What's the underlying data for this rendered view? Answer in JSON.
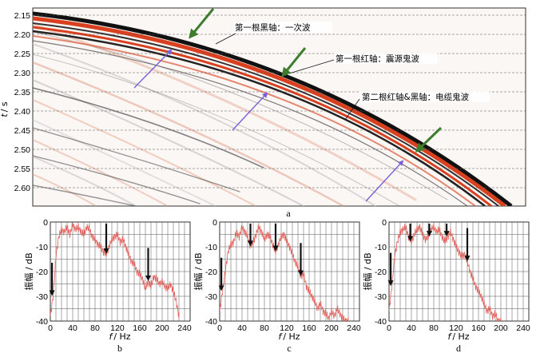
{
  "top_panel": {
    "caption": "a",
    "ylabel_italic": "t",
    "ylabel_unit": "/ s",
    "ytick_labels": [
      "2.15",
      "2.20",
      "2.25",
      "2.30",
      "2.35",
      "2.40",
      "2.45",
      "2.50",
      "2.55",
      "2.60"
    ],
    "annotations": {
      "primary": "第一根黑轴：一次波",
      "source_ghost": "第一根红轴：震源鬼波",
      "cable_ghost": "第二根红轴&黑轴：电缆鬼波"
    },
    "colors": {
      "red_event": "#d9401f",
      "black_event": "#111111",
      "green_arrow": "#3f7d2e",
      "purple_arrow": "#7b5fd6"
    }
  },
  "chart_data": [
    {
      "type": "line",
      "caption": "b",
      "xlabel_italic": "f",
      "xlabel_unit": "/ Hz",
      "ylabel": "振幅 / dB",
      "xticks": [
        "0",
        "40",
        "80",
        "120",
        "160",
        "200",
        "240"
      ],
      "yticks": [
        "0",
        "-10",
        "-20",
        "-30",
        "-40"
      ],
      "xlim": [
        0,
        250
      ],
      "ylim": [
        -40,
        0
      ],
      "grid": true,
      "notch_arrows_hz": [
        3,
        100,
        175
      ],
      "x": [
        0,
        5,
        10,
        15,
        20,
        25,
        30,
        35,
        40,
        45,
        50,
        55,
        60,
        65,
        70,
        75,
        80,
        85,
        90,
        95,
        100,
        105,
        110,
        115,
        120,
        125,
        130,
        135,
        140,
        145,
        150,
        155,
        160,
        165,
        170,
        175,
        180,
        185,
        190,
        195,
        200,
        205,
        210,
        215,
        220,
        225,
        230
      ],
      "values": [
        -38,
        -30,
        -14,
        -6,
        -3,
        -4,
        -2,
        -5,
        -1,
        -3,
        -2,
        -4,
        -5,
        -2,
        -3,
        -6,
        -7,
        -9,
        -10,
        -12,
        -13,
        -10,
        -7,
        -6,
        -5,
        -8,
        -7,
        -10,
        -13,
        -16,
        -17,
        -20,
        -21,
        -23,
        -27,
        -24,
        -26,
        -22,
        -23,
        -25,
        -24,
        -26,
        -27,
        -25,
        -28,
        -32,
        -38
      ]
    },
    {
      "type": "line",
      "caption": "c",
      "xlabel_italic": "f",
      "xlabel_unit": "/ Hz",
      "ylabel": "振幅 / dB",
      "xticks": [
        "0",
        "40",
        "80",
        "120",
        "160",
        "200",
        "240"
      ],
      "yticks": [
        "0",
        "-10",
        "-20",
        "-30",
        "-40"
      ],
      "xlim": [
        0,
        250
      ],
      "ylim": [
        -40,
        0
      ],
      "grid": true,
      "notch_arrows_hz": [
        3,
        55,
        100,
        145
      ],
      "x": [
        0,
        5,
        10,
        15,
        20,
        25,
        30,
        35,
        40,
        45,
        50,
        55,
        60,
        65,
        70,
        75,
        80,
        85,
        90,
        95,
        100,
        105,
        110,
        115,
        120,
        125,
        130,
        135,
        140,
        145,
        150,
        155,
        160,
        165,
        170,
        175,
        180,
        185,
        190,
        195,
        200,
        205,
        210,
        215,
        220,
        225,
        230
      ],
      "values": [
        -36,
        -28,
        -20,
        -12,
        -9,
        -8,
        -4,
        -6,
        -2,
        -4,
        -6,
        -10,
        -8,
        -5,
        -2,
        -4,
        -7,
        -5,
        -6,
        -9,
        -12,
        -9,
        -6,
        -5,
        -8,
        -10,
        -13,
        -16,
        -18,
        -22,
        -21,
        -26,
        -28,
        -30,
        -32,
        -35,
        -33,
        -36,
        -37,
        -39,
        -36,
        -38,
        -35,
        -37,
        -39,
        -40,
        -40
      ]
    },
    {
      "type": "line",
      "caption": "d",
      "xlabel_italic": "f",
      "xlabel_unit": "/ Hz",
      "ylabel": "振幅 / dB",
      "xticks": [
        "0",
        "40",
        "80",
        "120",
        "160",
        "200",
        "240"
      ],
      "yticks": [
        "0",
        "-10",
        "-20",
        "-30",
        "-40"
      ],
      "xlim": [
        0,
        250
      ],
      "ylim": [
        -40,
        0
      ],
      "grid": true,
      "notch_arrows_hz": [
        3,
        38,
        72,
        103,
        140
      ],
      "x": [
        0,
        5,
        10,
        15,
        20,
        25,
        30,
        35,
        40,
        45,
        50,
        55,
        60,
        65,
        70,
        75,
        80,
        85,
        90,
        95,
        100,
        105,
        110,
        115,
        120,
        125,
        130,
        135,
        140,
        145,
        150,
        155,
        160,
        165,
        170,
        175,
        180,
        185,
        190,
        195,
        200
      ],
      "values": [
        -36,
        -26,
        -14,
        -8,
        -4,
        -3,
        -2,
        -6,
        -8,
        -5,
        -3,
        -2,
        -5,
        -7,
        -6,
        -3,
        -2,
        -4,
        -3,
        -6,
        -8,
        -6,
        -4,
        -7,
        -10,
        -12,
        -14,
        -13,
        -16,
        -20,
        -23,
        -26,
        -28,
        -30,
        -33,
        -36,
        -35,
        -38,
        -37,
        -40,
        -40
      ]
    }
  ]
}
